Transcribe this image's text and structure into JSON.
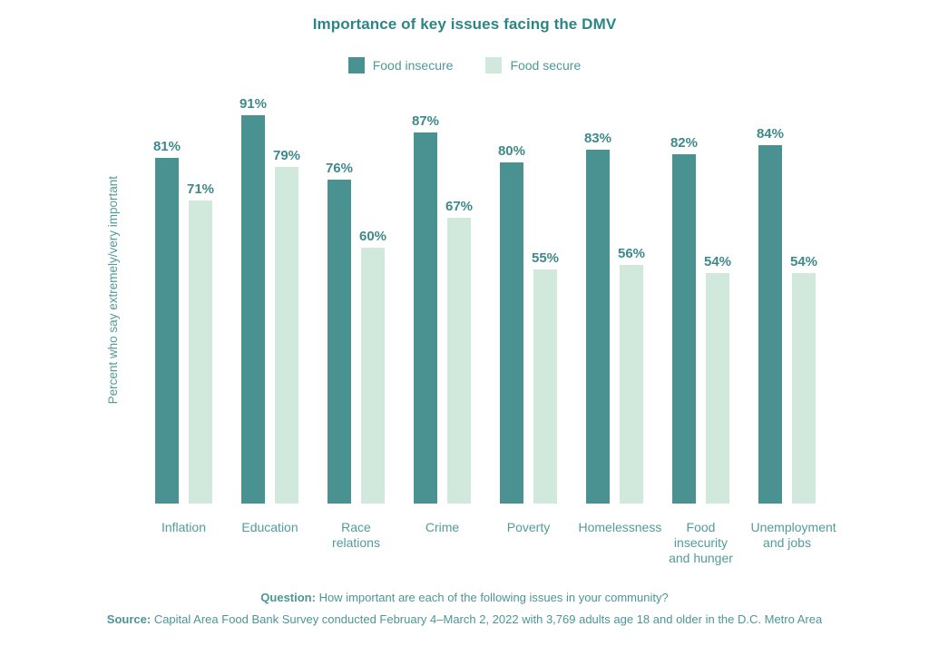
{
  "title": "Importance of key issues facing the DMV",
  "legend": [
    {
      "label": "Food insecure",
      "color": "#4a9191"
    },
    {
      "label": "Food secure",
      "color": "#d1e9dd"
    }
  ],
  "ylabel": "Percent who say extremely/very important",
  "footer": {
    "question_label": "Question:",
    "question_text": " How important are each of the following issues in your community?",
    "source_label": "Source:",
    "source_text": " Capital Area Food Bank Survey conducted February 4–March 2, 2022 with 3,769 adults age 18 and older in the D.C. Metro Area"
  },
  "chart_data": {
    "type": "bar",
    "title": "Importance of key issues facing the DMV",
    "categories": [
      "Inflation",
      "Education",
      "Race relations",
      "Crime",
      "Poverty",
      "Homelessness",
      "Food insecurity and hunger",
      "Unemployment and jobs"
    ],
    "series": [
      {
        "name": "Food insecure",
        "color": "#4a9191",
        "values": [
          81,
          91,
          76,
          87,
          80,
          83,
          82,
          84
        ]
      },
      {
        "name": "Food secure",
        "color": "#d1e9dd",
        "values": [
          71,
          79,
          60,
          67,
          55,
          56,
          54,
          54
        ]
      }
    ],
    "xlabel": "",
    "ylabel": "Percent who say extremely/very important",
    "ylim": [
      0,
      100
    ],
    "value_label_format": "{v}%",
    "grid": false,
    "legend_position": "top",
    "value_labels_shown": true,
    "y_axis_ticks_shown": false
  }
}
